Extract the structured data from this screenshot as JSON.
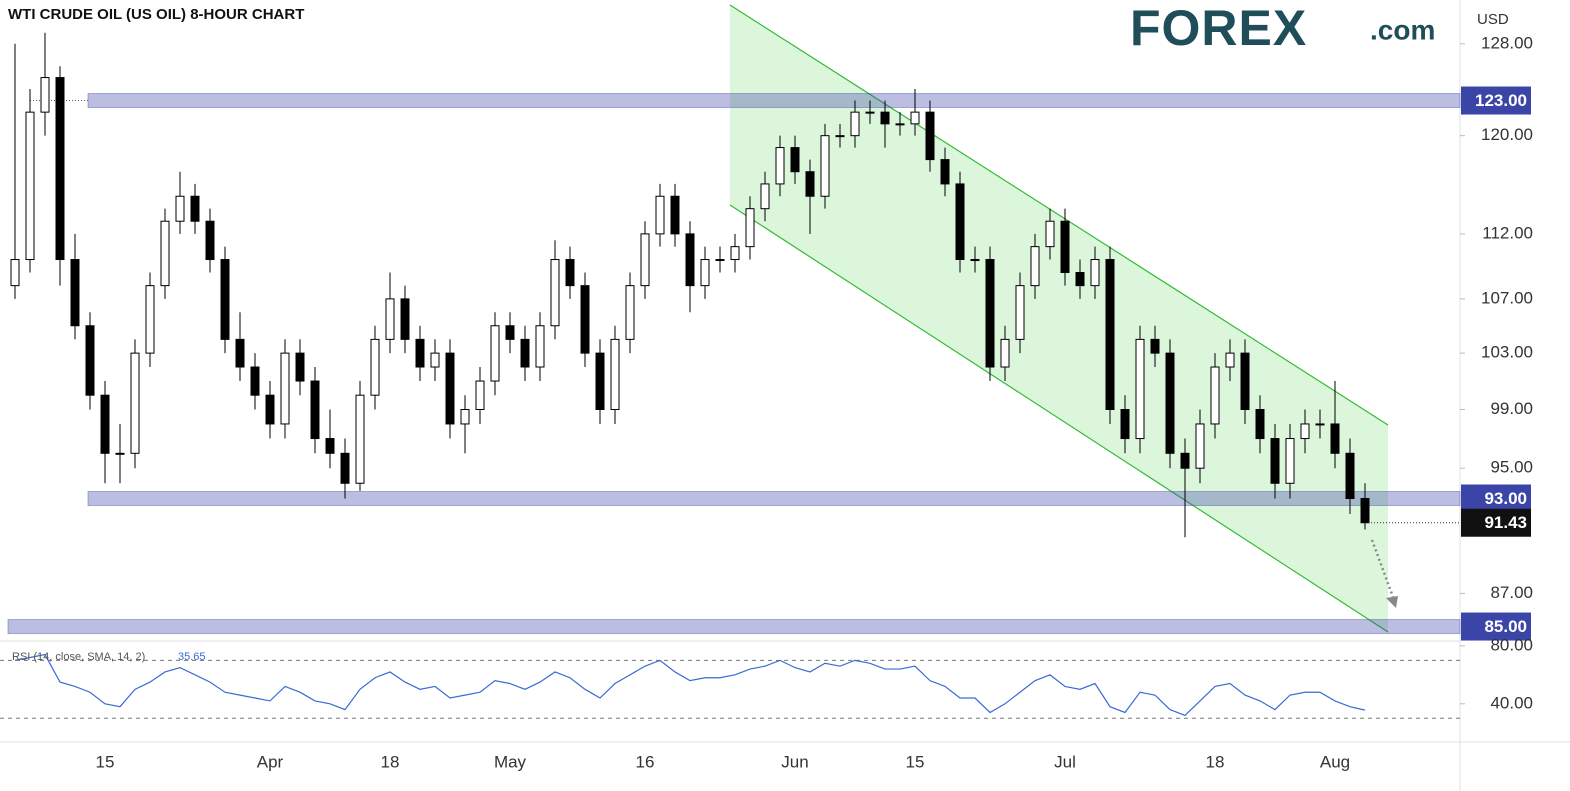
{
  "chart_data": {
    "type": "candlestick",
    "title": "WTI CRUDE OIL (US OIL) 8-HOUR CHART",
    "brand": "FOREX",
    "brand_suffix": ".com",
    "currency": "USD",
    "categories": [
      null,
      null,
      null,
      null,
      null,
      null,
      "15",
      null,
      null,
      null,
      null,
      null,
      null,
      null,
      null,
      null,
      null,
      "Apr",
      null,
      null,
      null,
      null,
      null,
      null,
      null,
      "18",
      null,
      null,
      null,
      null,
      null,
      null,
      null,
      "May",
      null,
      null,
      null,
      null,
      null,
      null,
      null,
      null,
      "16",
      null,
      null,
      null,
      null,
      null,
      null,
      null,
      null,
      null,
      "Jun",
      null,
      null,
      null,
      null,
      null,
      null,
      null,
      "15",
      null,
      null,
      null,
      null,
      null,
      null,
      null,
      null,
      null,
      "Jul",
      null,
      null,
      null,
      null,
      null,
      null,
      null,
      null,
      null,
      "18",
      null,
      null,
      null,
      null,
      null,
      null,
      null,
      "Aug",
      null,
      null
    ],
    "open": [
      108,
      110,
      122,
      125,
      110,
      105,
      100,
      96,
      96,
      103,
      108,
      113,
      115,
      113,
      110,
      104,
      102,
      100,
      98,
      103,
      101,
      97,
      96,
      94,
      100,
      104,
      107,
      104,
      102,
      103,
      98,
      99,
      101,
      105,
      104,
      102,
      105,
      110,
      108,
      103,
      99,
      104,
      108,
      112,
      115,
      112,
      108,
      110,
      110,
      111,
      114,
      116,
      119,
      117,
      115,
      120,
      120,
      122,
      122,
      121,
      121,
      122,
      118,
      116,
      110,
      110,
      102,
      104,
      108,
      111,
      113,
      109,
      108,
      110,
      99,
      97,
      104,
      103,
      96,
      95,
      98,
      102,
      103,
      99,
      97,
      94,
      97,
      98,
      98,
      96,
      93
    ],
    "high": [
      128,
      124,
      129,
      126,
      112,
      106,
      101,
      98,
      104,
      109,
      114,
      117,
      116,
      114,
      111,
      106,
      103,
      101,
      104,
      104,
      102,
      99,
      97,
      101,
      105,
      109,
      108,
      105,
      104,
      104,
      100,
      102,
      106,
      106,
      105,
      106,
      111.5,
      111,
      109,
      104,
      105,
      109,
      113,
      116,
      116,
      113,
      111,
      111,
      112,
      115,
      117,
      120,
      120,
      118,
      121,
      121,
      123,
      123,
      123,
      122,
      124,
      123,
      119,
      117,
      111,
      111,
      105,
      109,
      112,
      114,
      114,
      110,
      111,
      111,
      100,
      105,
      105,
      104,
      97,
      99,
      103,
      104,
      104,
      100,
      98,
      98,
      99,
      99,
      101,
      97,
      94
    ],
    "low": [
      107,
      109,
      120,
      108,
      104,
      99,
      94,
      94,
      95,
      102,
      107,
      112,
      112,
      109,
      103,
      101,
      99,
      97,
      97,
      100,
      96,
      95,
      93,
      93.5,
      99,
      103,
      103,
      101,
      101,
      97,
      96,
      98,
      100,
      103,
      101,
      101,
      104,
      107,
      102,
      98,
      98,
      103,
      107,
      111,
      111,
      106,
      107,
      109,
      109,
      110,
      113,
      115,
      116,
      112,
      114,
      119,
      119,
      121,
      119,
      120,
      120,
      117,
      115,
      109,
      109,
      101,
      101,
      103,
      107,
      110,
      108,
      107,
      107,
      98,
      96,
      96,
      102,
      95,
      90.5,
      94,
      97,
      101,
      98,
      96,
      93,
      93,
      96,
      97,
      95,
      92,
      91
    ],
    "close": [
      110,
      122,
      125,
      110,
      105,
      100,
      96,
      96,
      103,
      108,
      113,
      115,
      113,
      110,
      104,
      102,
      100,
      98,
      103,
      101,
      97,
      96,
      94,
      100,
      104,
      107,
      104,
      102,
      103,
      98,
      99,
      101,
      105,
      104,
      102,
      105,
      110,
      108,
      103,
      99,
      104,
      108,
      112,
      115,
      112,
      108,
      110,
      110,
      111,
      114,
      116,
      119,
      117,
      115,
      120,
      120,
      122,
      122,
      121,
      121,
      122,
      118,
      116,
      110,
      110,
      102,
      104,
      108,
      111,
      113,
      109,
      108,
      110,
      99,
      97,
      104,
      103,
      96,
      95,
      98,
      102,
      103,
      99,
      97,
      94,
      97,
      98,
      98,
      96,
      93,
      91.43
    ],
    "ylim": [
      84.2,
      132
    ],
    "log_scale": true,
    "yticks": [
      {
        "value": 128,
        "label": "128.00"
      },
      {
        "value": 120,
        "label": "120.00"
      },
      {
        "value": 112,
        "label": "112.00"
      },
      {
        "value": 107,
        "label": "107.00"
      },
      {
        "value": 103,
        "label": "103.00"
      },
      {
        "value": 99,
        "label": "99.00"
      },
      {
        "value": 95,
        "label": "95.00"
      },
      {
        "value": 87,
        "label": "87.00"
      }
    ],
    "levels": [
      {
        "value": 123,
        "label": "123.00"
      },
      {
        "value": 93,
        "label": "93.00"
      },
      {
        "value": 85,
        "label": "85.00"
      }
    ],
    "current": {
      "value": 91.43,
      "label": "91.43"
    },
    "up_color": "#ffffff",
    "down_color": "#000000",
    "level_color": "#3b45a8",
    "rsi": {
      "label": "RSI (14, close, SMA, 14, 2)",
      "color": "#3a6ad6",
      "values": [
        70,
        72,
        74,
        55,
        52,
        48,
        40,
        38,
        50,
        55,
        62,
        65,
        60,
        55,
        48,
        46,
        44,
        42,
        52,
        48,
        42,
        40,
        36,
        50,
        58,
        62,
        55,
        50,
        52,
        44,
        46,
        48,
        56,
        54,
        50,
        55,
        62,
        58,
        50,
        44,
        54,
        60,
        66,
        70,
        62,
        56,
        58,
        58,
        60,
        64,
        66,
        70,
        65,
        62,
        68,
        66,
        70,
        68,
        64,
        64,
        66,
        56,
        52,
        44,
        44,
        34,
        40,
        48,
        56,
        60,
        52,
        50,
        54,
        38,
        34,
        48,
        46,
        36,
        32,
        42,
        52,
        54,
        46,
        42,
        36,
        46,
        48,
        48,
        42,
        38,
        35.65
      ],
      "ylim": [
        15,
        82
      ],
      "yticks": [
        {
          "value": 80,
          "label": "80.00"
        },
        {
          "value": 40,
          "label": "40.00"
        }
      ],
      "bands": [
        70,
        30
      ]
    }
  }
}
